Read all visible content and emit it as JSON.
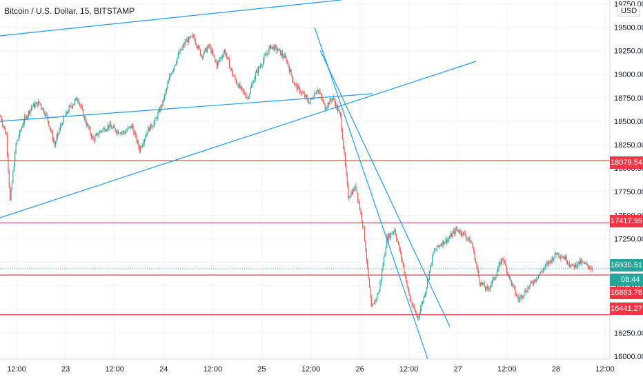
{
  "header": {
    "title": "Bitcoin / U.S. Dollar, 15, BITSTAMP",
    "currency_button": "USD"
  },
  "colors": {
    "up": "#26a69a",
    "down": "#ef5350",
    "trendline": "#2196f3",
    "level": "#f23645",
    "last_price": "#26a69a"
  },
  "badges": {
    "last_price": "16930.51",
    "countdown": "08:44",
    "level_1": "18079.54",
    "level_2": "17417.99",
    "level_3": "16863.78",
    "level_4": "16441.27"
  },
  "chart_data": {
    "type": "candlestick",
    "symbol": "BTCUSD",
    "exchange": "BITSTAMP",
    "interval": "15",
    "x_tick_labels": [
      "12:00",
      "23",
      "12:00",
      "24",
      "12:00",
      "25",
      "12:00",
      "26",
      "12:00",
      "27",
      "12:00",
      "28",
      "12:00"
    ],
    "y_tick_labels": [
      "16000.00",
      "16250.00",
      "16500.00",
      "16750.00",
      "17000.00",
      "17250.00",
      "17500.00",
      "17750.00",
      "18000.00",
      "18250.00",
      "18500.00",
      "18750.00",
      "19000.00",
      "19250.00",
      "19500.00",
      "19750.00"
    ],
    "ylim": [
      15970,
      19790
    ],
    "horizontal_levels": [
      18079.54,
      17417.99,
      16863.78,
      16441.27
    ],
    "last_price": 16930.51,
    "price_path_anchors": [
      [
        0,
        18550
      ],
      [
        6,
        18350
      ],
      [
        10,
        17650
      ],
      [
        16,
        18250
      ],
      [
        24,
        18500
      ],
      [
        32,
        18650
      ],
      [
        40,
        18700
      ],
      [
        48,
        18550
      ],
      [
        56,
        18250
      ],
      [
        64,
        18500
      ],
      [
        72,
        18650
      ],
      [
        80,
        18750
      ],
      [
        88,
        18500
      ],
      [
        96,
        18300
      ],
      [
        104,
        18400
      ],
      [
        112,
        18450
      ],
      [
        120,
        18400
      ],
      [
        128,
        18380
      ],
      [
        136,
        18450
      ],
      [
        144,
        18200
      ],
      [
        152,
        18400
      ],
      [
        160,
        18500
      ],
      [
        168,
        18700
      ],
      [
        176,
        19000
      ],
      [
        184,
        19200
      ],
      [
        192,
        19350
      ],
      [
        200,
        19400
      ],
      [
        208,
        19200
      ],
      [
        216,
        19300
      ],
      [
        224,
        19100
      ],
      [
        232,
        19250
      ],
      [
        240,
        19000
      ],
      [
        248,
        18850
      ],
      [
        256,
        18750
      ],
      [
        264,
        19000
      ],
      [
        272,
        19150
      ],
      [
        280,
        19300
      ],
      [
        288,
        19250
      ],
      [
        296,
        19150
      ],
      [
        304,
        18900
      ],
      [
        312,
        18800
      ],
      [
        320,
        18700
      ],
      [
        328,
        18850
      ],
      [
        336,
        18650
      ],
      [
        344,
        18750
      ],
      [
        352,
        18550
      ],
      [
        360,
        17700
      ],
      [
        368,
        17800
      ],
      [
        376,
        17350
      ],
      [
        384,
        16500
      ],
      [
        392,
        16700
      ],
      [
        400,
        17250
      ],
      [
        408,
        17350
      ],
      [
        416,
        17000
      ],
      [
        424,
        16600
      ],
      [
        432,
        16400
      ],
      [
        440,
        16700
      ],
      [
        448,
        17100
      ],
      [
        456,
        17200
      ],
      [
        464,
        17250
      ],
      [
        472,
        17350
      ],
      [
        480,
        17300
      ],
      [
        488,
        17200
      ],
      [
        496,
        16800
      ],
      [
        504,
        16700
      ],
      [
        512,
        16850
      ],
      [
        520,
        17050
      ],
      [
        528,
        16800
      ],
      [
        536,
        16600
      ],
      [
        544,
        16700
      ],
      [
        552,
        16800
      ],
      [
        560,
        16900
      ],
      [
        568,
        17000
      ],
      [
        576,
        17100
      ],
      [
        584,
        17050
      ],
      [
        592,
        16950
      ],
      [
        600,
        17000
      ],
      [
        608,
        16960
      ],
      [
        613,
        16930
      ]
    ]
  }
}
